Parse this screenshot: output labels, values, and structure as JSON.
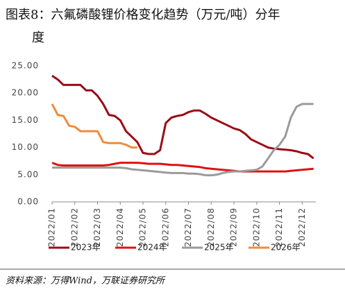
{
  "chart_data": {
    "type": "line",
    "title": "图表8：六氟磷酸锂价格变化趋势（万元/吨）分年度",
    "source": "资料来源：万得Wind，万联证券研究所",
    "categories": [
      "2022/01",
      null,
      null,
      null,
      "2022/02",
      null,
      null,
      null,
      "2022/03",
      null,
      null,
      null,
      "2022/04",
      null,
      null,
      null,
      "2022/05",
      null,
      null,
      null,
      "2022/06",
      null,
      null,
      null,
      "2022/07",
      null,
      null,
      null,
      "2022/08",
      null,
      null,
      null,
      "2022/09",
      null,
      null,
      null,
      "2022/10",
      null,
      null,
      null,
      "2022/11",
      null,
      null,
      null,
      "2022/12",
      null,
      null
    ],
    "ylim": [
      0,
      25
    ],
    "yticks": [
      {
        "value": 0,
        "label": "0.00"
      },
      {
        "value": 5,
        "label": "5.00"
      },
      {
        "value": 10,
        "label": "10.00"
      },
      {
        "value": 15,
        "label": "15.00"
      },
      {
        "value": 20,
        "label": "20.00"
      },
      {
        "value": 25,
        "label": "25.00"
      }
    ],
    "legend": "bottom",
    "series": [
      {
        "name": "2023年",
        "color": "#9b0a14",
        "values": [
          23.2,
          22.5,
          21.5,
          21.5,
          21.5,
          21.5,
          20.5,
          20.5,
          19.5,
          18,
          16,
          15.8,
          15,
          13,
          12,
          11,
          9,
          8.8,
          8.8,
          9.5,
          14.5,
          15.5,
          15.8,
          16,
          16.5,
          16.8,
          16.8,
          16.2,
          15.5,
          15,
          14.5,
          14,
          13.5,
          13.2,
          12.5,
          11.5,
          11,
          10.5,
          10,
          9.8,
          9.7,
          9.6,
          9.5,
          9.3,
          9,
          8.8,
          8
        ]
      },
      {
        "name": "2024年",
        "color": "#e01010",
        "values": [
          7.2,
          6.8,
          6.7,
          6.7,
          6.7,
          6.7,
          6.7,
          6.7,
          6.7,
          6.7,
          6.8,
          7.0,
          7.2,
          7.2,
          7.2,
          7.2,
          7.1,
          7.0,
          7.0,
          7.0,
          6.9,
          6.8,
          6.8,
          6.7,
          6.6,
          6.5,
          6.4,
          6.2,
          6.1,
          6.0,
          5.9,
          5.8,
          5.7,
          5.6,
          5.6,
          5.6,
          5.6,
          5.6,
          5.6,
          5.6,
          5.6,
          5.6,
          5.7,
          5.8,
          5.9,
          6.0,
          6.1
        ]
      },
      {
        "name": "2025年",
        "color": "#9a9a9a",
        "values": [
          6.3,
          6.3,
          6.3,
          6.3,
          6.3,
          6.3,
          6.3,
          6.3,
          6.3,
          6.3,
          6.3,
          6.3,
          6.3,
          6.2,
          6.0,
          5.9,
          5.8,
          5.7,
          5.6,
          5.5,
          5.4,
          5.3,
          5.3,
          5.3,
          5.2,
          5.2,
          5.1,
          4.9,
          4.9,
          5.0,
          5.3,
          5.5,
          5.6,
          5.6,
          5.7,
          5.8,
          5.9,
          6.5,
          8,
          9.5,
          10.5,
          12,
          15.5,
          17.5,
          18,
          18,
          18
        ]
      },
      {
        "name": "2026年",
        "color": "#f08a3c",
        "values": [
          18,
          16,
          15.8,
          14,
          13.8,
          13,
          13,
          13,
          13,
          11,
          10.8,
          10.8,
          10.8,
          10.5,
          10,
          10,
          null,
          null,
          null,
          null,
          null,
          null,
          null,
          null,
          null,
          null,
          null,
          null,
          null,
          null,
          null,
          null,
          null,
          null,
          null,
          null,
          null,
          null,
          null,
          null,
          null,
          null,
          null,
          null,
          null,
          null,
          null
        ]
      }
    ]
  }
}
